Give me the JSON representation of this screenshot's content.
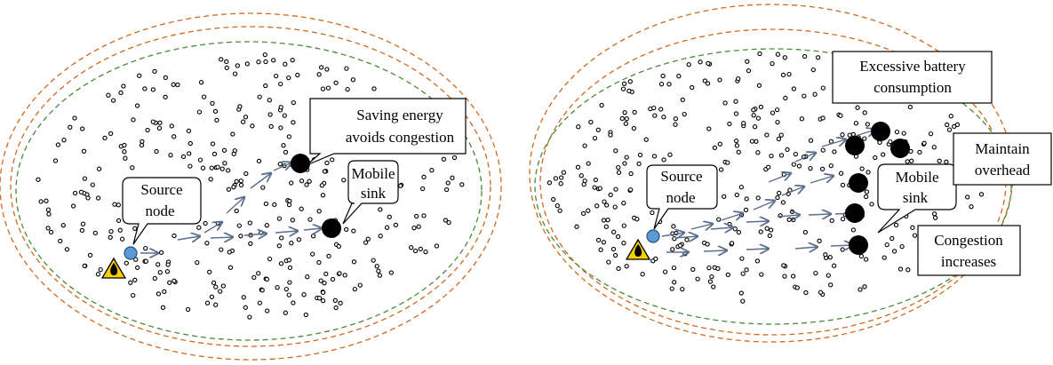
{
  "colors": {
    "orange_ring": "#d2691e",
    "green_ring": "#4a8a3a",
    "source_node": "#5b9bd5",
    "arrow": "#5b6e8c",
    "hazard": "#f5d000"
  },
  "icons": [
    "fire-hazard-icon",
    "source-node-icon",
    "mobile-sink-icon"
  ],
  "left": {
    "source_label": [
      "Source",
      "node"
    ],
    "sink_label": [
      "Mobile",
      "sink"
    ],
    "note": [
      "Saving energy",
      "avoids congestion"
    ]
  },
  "right": {
    "source_label": [
      "Source",
      "node"
    ],
    "sink_label": [
      "Mobile",
      "sink"
    ],
    "note_battery": [
      "Excessive battery",
      "consumption"
    ],
    "note_overhead": [
      "Maintain",
      "overhead"
    ],
    "note_congestion": [
      "Congestion",
      "increases"
    ]
  }
}
